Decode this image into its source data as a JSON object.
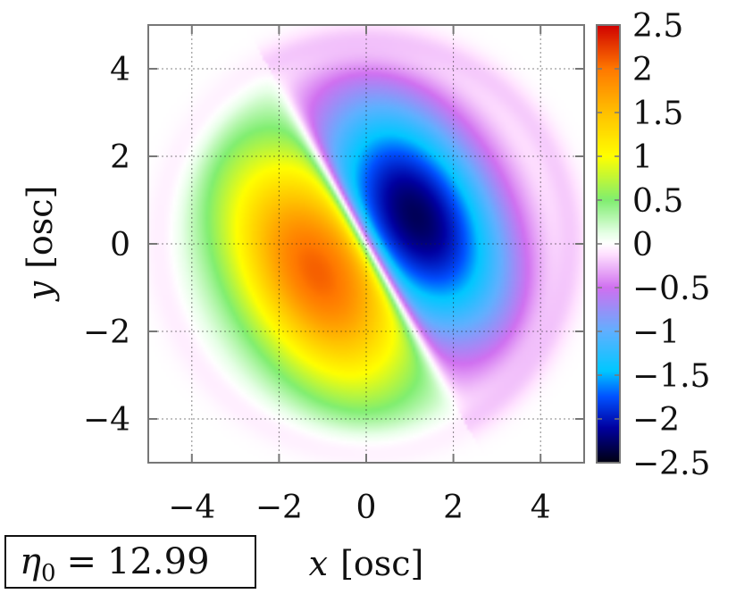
{
  "chart_data": {
    "type": "heatmap",
    "title": "",
    "xlabel_var": "x",
    "xlabel_unit": "[osc]",
    "ylabel_var": "y",
    "ylabel_unit": "[osc]",
    "xlim": [
      -5,
      5
    ],
    "ylim": [
      -5,
      5
    ],
    "x_ticks": [
      -4,
      -2,
      0,
      2,
      4
    ],
    "y_ticks": [
      -4,
      -2,
      0,
      2,
      4
    ],
    "x_tick_labels": [
      "−4",
      "−2",
      "0",
      "2",
      "4"
    ],
    "y_tick_labels": [
      "−4",
      "−2",
      "0",
      "2",
      "4"
    ],
    "grid": true,
    "colorbar": {
      "range": [
        -2.5,
        2.5
      ],
      "ticks": [
        2.5,
        2,
        1.5,
        1,
        0.5,
        0,
        -0.5,
        -1,
        -1.5,
        -2,
        -2.5
      ],
      "tick_labels": [
        "2.5",
        "2",
        "1.5",
        "1",
        "0.5",
        "0",
        "−0.5",
        "−1",
        "−1.5",
        "−2",
        "−2.5"
      ],
      "colors": [
        {
          "v": -2.5,
          "c": "#000010"
        },
        {
          "v": -2.1,
          "c": "#0000a0"
        },
        {
          "v": -1.75,
          "c": "#0050ff"
        },
        {
          "v": -1.45,
          "c": "#00c8ff"
        },
        {
          "v": -1.0,
          "c": "#60b0ff"
        },
        {
          "v": -0.5,
          "c": "#d070f0"
        },
        {
          "v": -0.12,
          "c": "#ffe0ff"
        },
        {
          "v": 0,
          "c": "#ffffff"
        },
        {
          "v": 0.12,
          "c": "#e6ffe6"
        },
        {
          "v": 0.5,
          "c": "#80ee70"
        },
        {
          "v": 1.0,
          "c": "#ffff00"
        },
        {
          "v": 1.5,
          "c": "#ffc000"
        },
        {
          "v": 2.0,
          "c": "#ff7800"
        },
        {
          "v": 2.5,
          "c": "#d00000"
        }
      ]
    },
    "field": {
      "description": "dipole-like field split by a nodal line",
      "nodal_line_direction": [
        1,
        -1.8
      ],
      "envelope_radius": 4.3,
      "peak_positive": 2.1,
      "peak_negative": -2.3
    },
    "annotation": {
      "symbol": "η",
      "subscript": "0",
      "equals": "=",
      "value": "12.99"
    }
  }
}
